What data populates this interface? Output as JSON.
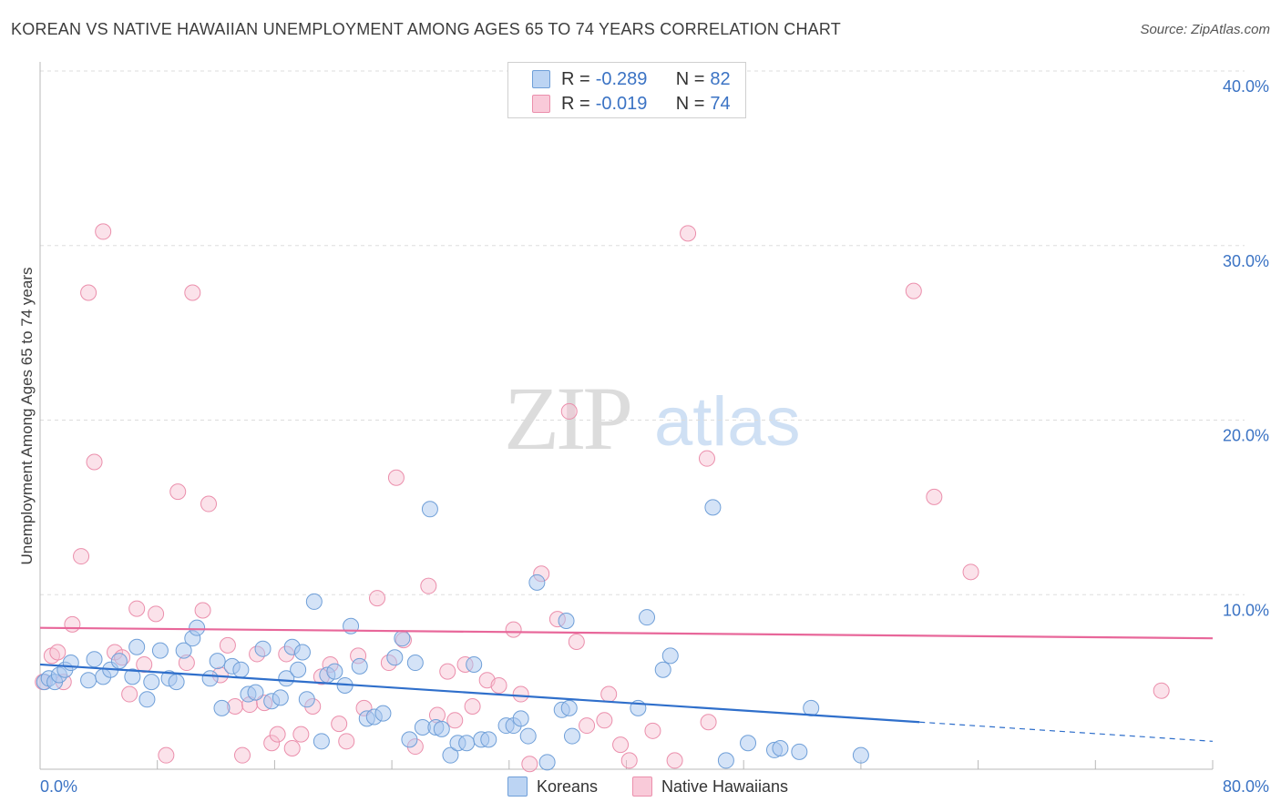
{
  "header": {
    "title": "KOREAN VS NATIVE HAWAIIAN UNEMPLOYMENT AMONG AGES 65 TO 74 YEARS CORRELATION CHART",
    "source": "Source: ZipAtlas.com"
  },
  "legend": {
    "koreans": {
      "r_label": "R = ",
      "r_value": "-0.289",
      "n_label": "N = ",
      "n_value": "82"
    },
    "hawaiians": {
      "r_label": "R = ",
      "r_value": "-0.019",
      "n_label": "N = ",
      "n_value": "74"
    }
  },
  "bottom_legend": {
    "koreans": "Koreans",
    "hawaiians": "Native Hawaiians"
  },
  "watermark": {
    "zip": "ZIP",
    "atlas": "atlas"
  },
  "colors": {
    "korean_fill": "#a9c8ef",
    "korean_stroke": "#6f9fd8",
    "korean_line": "#2f6fcb",
    "hawaiian_fill": "#f7bfd0",
    "hawaiian_stroke": "#eb8fac",
    "hawaiian_line": "#e8679a",
    "axis_text": "#3b73c4",
    "grid": "#dddddd"
  },
  "chart_data": {
    "type": "scatter",
    "title": "KOREAN VS NATIVE HAWAIIAN UNEMPLOYMENT AMONG AGES 65 TO 74 YEARS CORRELATION CHART",
    "xlabel": "",
    "ylabel": "Unemployment Among Ages 65 to 74 years",
    "xlim": [
      0,
      80
    ],
    "ylim": [
      0,
      40
    ],
    "x_tick_labels": [
      "0.0%",
      "80.0%"
    ],
    "y_ticks": [
      10,
      20,
      30,
      40
    ],
    "y_tick_labels": [
      "10.0%",
      "20.0%",
      "30.0%",
      "40.0%"
    ],
    "legend_position": "top-center",
    "series": [
      {
        "name": "Koreans",
        "r": -0.289,
        "n": 82,
        "trend": {
          "x_start": 0,
          "y_start": 6.0,
          "x_end": 60,
          "y_end": 2.7,
          "dashed_to_x": 80,
          "dashed_y_end": 1.6
        },
        "points": [
          [
            0.3,
            5.0
          ],
          [
            0.6,
            5.2
          ],
          [
            1.0,
            5.0
          ],
          [
            1.3,
            5.4
          ],
          [
            1.7,
            5.7
          ],
          [
            2.1,
            6.1
          ],
          [
            3.3,
            5.1
          ],
          [
            3.7,
            6.3
          ],
          [
            4.3,
            5.3
          ],
          [
            4.8,
            5.7
          ],
          [
            5.4,
            6.2
          ],
          [
            6.3,
            5.3
          ],
          [
            6.6,
            7.0
          ],
          [
            7.3,
            4.0
          ],
          [
            7.6,
            5.0
          ],
          [
            8.2,
            6.8
          ],
          [
            8.8,
            5.2
          ],
          [
            9.3,
            5.0
          ],
          [
            9.8,
            6.8
          ],
          [
            10.4,
            7.5
          ],
          [
            10.7,
            8.1
          ],
          [
            11.6,
            5.2
          ],
          [
            12.1,
            6.2
          ],
          [
            12.4,
            3.5
          ],
          [
            13.1,
            5.9
          ],
          [
            13.7,
            5.7
          ],
          [
            14.2,
            4.3
          ],
          [
            14.7,
            4.4
          ],
          [
            15.2,
            6.9
          ],
          [
            15.8,
            3.9
          ],
          [
            16.4,
            4.1
          ],
          [
            16.8,
            5.2
          ],
          [
            17.2,
            7.0
          ],
          [
            17.6,
            5.7
          ],
          [
            18.2,
            4.0
          ],
          [
            18.7,
            9.6
          ],
          [
            19.2,
            1.6
          ],
          [
            19.6,
            5.4
          ],
          [
            20.1,
            5.6
          ],
          [
            20.8,
            4.8
          ],
          [
            21.2,
            8.2
          ],
          [
            21.8,
            5.9
          ],
          [
            22.3,
            2.9
          ],
          [
            22.8,
            3.0
          ],
          [
            23.4,
            3.2
          ],
          [
            24.2,
            6.4
          ],
          [
            24.7,
            7.5
          ],
          [
            25.2,
            1.7
          ],
          [
            25.6,
            6.1
          ],
          [
            26.1,
            2.4
          ],
          [
            26.6,
            14.9
          ],
          [
            27.0,
            2.4
          ],
          [
            27.4,
            2.3
          ],
          [
            28.0,
            0.8
          ],
          [
            28.5,
            1.5
          ],
          [
            29.1,
            1.5
          ],
          [
            29.6,
            6.0
          ],
          [
            30.1,
            1.7
          ],
          [
            30.6,
            1.7
          ],
          [
            31.8,
            2.5
          ],
          [
            32.3,
            2.5
          ],
          [
            32.8,
            2.9
          ],
          [
            33.3,
            1.9
          ],
          [
            33.9,
            10.7
          ],
          [
            34.6,
            0.4
          ],
          [
            35.6,
            3.4
          ],
          [
            35.9,
            8.5
          ],
          [
            36.1,
            3.5
          ],
          [
            36.3,
            1.9
          ],
          [
            41.4,
            8.7
          ],
          [
            42.5,
            5.7
          ],
          [
            43.0,
            6.5
          ],
          [
            45.9,
            15.0
          ],
          [
            46.8,
            0.5
          ],
          [
            48.3,
            1.5
          ],
          [
            50.1,
            1.1
          ],
          [
            50.5,
            1.2
          ],
          [
            51.8,
            1.0
          ],
          [
            52.6,
            3.5
          ],
          [
            56.0,
            0.8
          ],
          [
            40.8,
            3.5
          ],
          [
            17.9,
            6.7
          ]
        ]
      },
      {
        "name": "Native Hawaiians",
        "r": -0.019,
        "n": 74,
        "trend": {
          "x_start": 0,
          "y_start": 8.1,
          "x_end": 80,
          "y_end": 7.5
        },
        "points": [
          [
            0.2,
            5.0
          ],
          [
            0.8,
            6.5
          ],
          [
            1.2,
            6.7
          ],
          [
            1.6,
            5.0
          ],
          [
            2.2,
            8.3
          ],
          [
            2.8,
            12.2
          ],
          [
            3.3,
            27.3
          ],
          [
            3.7,
            17.6
          ],
          [
            4.3,
            30.8
          ],
          [
            5.1,
            6.7
          ],
          [
            5.6,
            6.4
          ],
          [
            6.1,
            4.3
          ],
          [
            6.6,
            9.2
          ],
          [
            7.1,
            6.0
          ],
          [
            7.9,
            8.9
          ],
          [
            8.6,
            0.8
          ],
          [
            9.4,
            15.9
          ],
          [
            10.0,
            6.1
          ],
          [
            10.4,
            27.3
          ],
          [
            11.1,
            9.1
          ],
          [
            11.5,
            15.2
          ],
          [
            12.3,
            5.4
          ],
          [
            12.8,
            7.1
          ],
          [
            13.3,
            3.6
          ],
          [
            13.8,
            0.8
          ],
          [
            14.3,
            3.7
          ],
          [
            14.8,
            6.6
          ],
          [
            15.3,
            3.8
          ],
          [
            15.8,
            1.5
          ],
          [
            16.2,
            2.0
          ],
          [
            16.8,
            6.6
          ],
          [
            17.2,
            1.2
          ],
          [
            17.8,
            2.0
          ],
          [
            18.6,
            3.6
          ],
          [
            19.2,
            5.3
          ],
          [
            19.8,
            6.0
          ],
          [
            20.4,
            2.6
          ],
          [
            20.9,
            1.6
          ],
          [
            21.7,
            6.5
          ],
          [
            22.1,
            3.5
          ],
          [
            23.0,
            9.8
          ],
          [
            23.8,
            6.1
          ],
          [
            24.3,
            16.7
          ],
          [
            24.8,
            7.4
          ],
          [
            25.6,
            1.3
          ],
          [
            26.5,
            10.5
          ],
          [
            27.1,
            3.1
          ],
          [
            27.8,
            5.6
          ],
          [
            28.3,
            2.8
          ],
          [
            29.0,
            6.0
          ],
          [
            29.5,
            3.6
          ],
          [
            30.5,
            5.1
          ],
          [
            31.3,
            4.8
          ],
          [
            32.3,
            8.0
          ],
          [
            32.8,
            4.3
          ],
          [
            33.4,
            0.3
          ],
          [
            34.2,
            11.2
          ],
          [
            35.3,
            8.6
          ],
          [
            36.1,
            20.5
          ],
          [
            36.6,
            7.3
          ],
          [
            37.3,
            2.5
          ],
          [
            38.5,
            2.8
          ],
          [
            38.8,
            4.3
          ],
          [
            39.6,
            1.4
          ],
          [
            40.2,
            0.5
          ],
          [
            41.8,
            2.2
          ],
          [
            43.3,
            0.5
          ],
          [
            44.2,
            30.7
          ],
          [
            45.5,
            17.8
          ],
          [
            45.6,
            2.7
          ],
          [
            59.6,
            27.4
          ],
          [
            61.0,
            15.6
          ],
          [
            63.5,
            11.3
          ],
          [
            76.5,
            4.5
          ]
        ]
      }
    ]
  }
}
